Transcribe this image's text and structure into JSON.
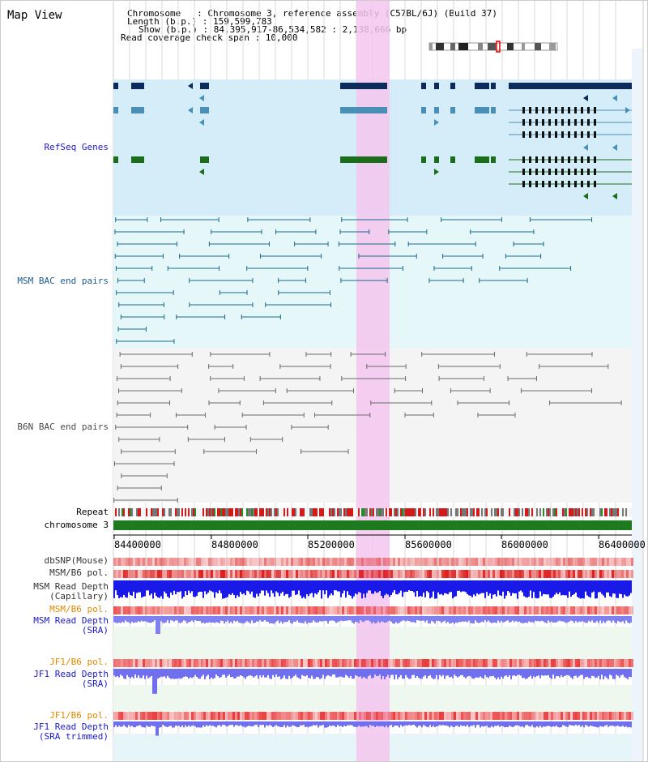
{
  "title": "Map View",
  "info": {
    "lines": [
      "Chromosome   : Chromosome 3, reference assembly (C57BL/6J) (Build 37)",
      "Length (b.p.) : 159,599,783",
      "Show (b.p.) : 84,395,917-86,534,582 : 2,138,666 bp",
      "Read coverage check span : 10,000"
    ]
  },
  "tracks": {
    "refseq": "RefSeq Genes",
    "msm_bac": "MSM BAC end pairs",
    "b6n_bac": "B6N BAC end pairs",
    "repeat": "Repeat",
    "chrom": "chromosome 3",
    "dbsnp": "dbSNP(Mouse)",
    "msm_b6_pol": "MSM/B6 pol.",
    "msm_depth_cap": "MSM Read Depth",
    "msm_depth_cap_sub": "(Capillary)",
    "msm_b6_pol2": "MSM/B6 pol.",
    "msm_depth_sra": "MSM Read Depth",
    "msm_depth_sra_sub": "(SRA)",
    "jf1_b6_pol": "JF1/B6 pol.",
    "jf1_depth": "JF1 Read Depth",
    "jf1_depth_sub": "(SRA)",
    "jf1_b6_pol2": "JF1/B6 pol.",
    "jf1_depth_trim": "JF1 Read Depth",
    "jf1_depth_trim_sub": "(SRA trimmed)"
  },
  "axis": {
    "ticks": [
      "84400000",
      "84800000",
      "85200000",
      "85600000",
      "86000000",
      "86400000"
    ]
  },
  "colors": {
    "refseq_label": "#1a1acc",
    "msm_label": "#1a5a8a",
    "b6n_label": "#4a4a4a",
    "pol_orange": "#e08a00",
    "depth_blue": "#1a1acc",
    "highlight": "#f3c6ef",
    "chrom_green": "#1e7a1e"
  }
}
